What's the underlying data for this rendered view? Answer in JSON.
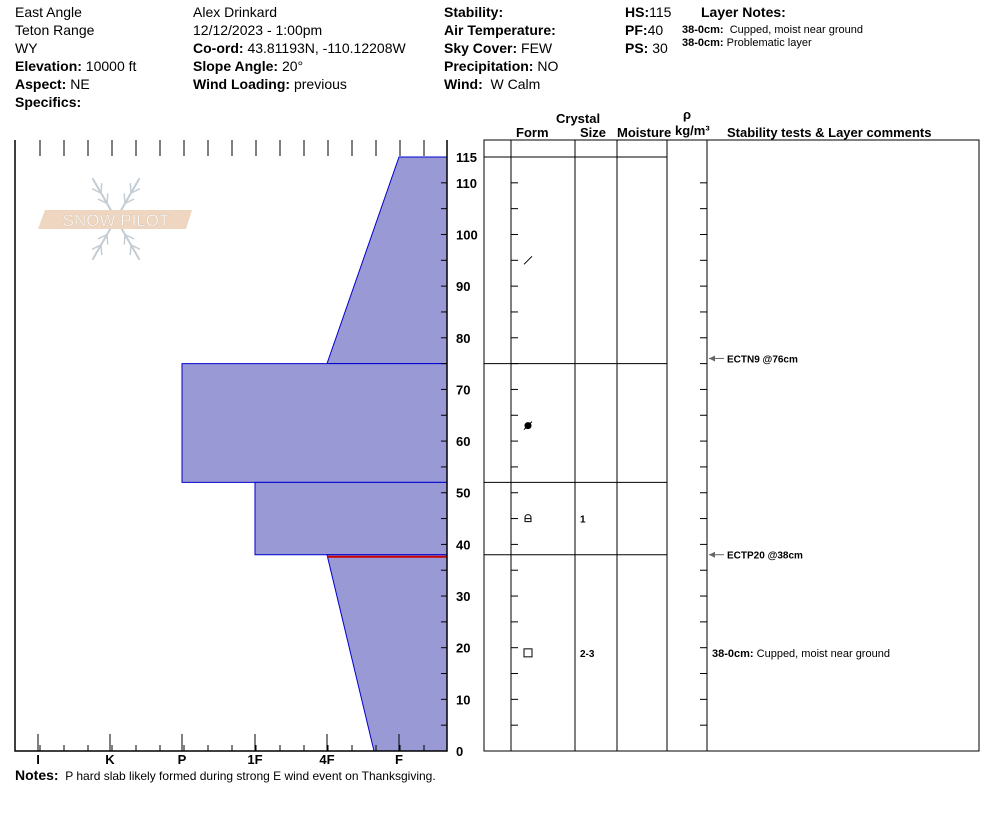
{
  "header": {
    "location": "East Angle",
    "range": "Teton Range",
    "state": "WY",
    "elevation_label": "Elevation:",
    "elevation": "10000 ft",
    "aspect_label": "Aspect:",
    "aspect": "NE",
    "specifics_label": "Specifics:",
    "observer": "Alex Drinkard",
    "datetime": "12/12/2023 - 1:00pm",
    "coord_label": "Co-ord:",
    "coord": "43.81193N, -110.12208W",
    "slope_label": "Slope Angle:",
    "slope": "20°",
    "wind_loading_label": "Wind Loading:",
    "wind_loading": "previous",
    "stability_label": "Stability:",
    "air_temp_label": "Air Temperature:",
    "sky_label": "Sky Cover:",
    "sky": "FEW",
    "precip_label": "Precipitation:",
    "precip": "NO",
    "wind_label": "Wind:",
    "wind": "W Calm",
    "hs_label": "HS:",
    "hs": "115",
    "pf_label": "PF:",
    "pf": "40",
    "ps_label": "PS:",
    "ps": "30",
    "layer_notes_label": "Layer Notes:",
    "layer_notes": [
      {
        "range": "38-0cm:",
        "text": "Cupped, moist near ground"
      },
      {
        "range": "38-0cm:",
        "text": "Problematic layer"
      }
    ]
  },
  "logo_text": "SNOW PILOT",
  "notes_label": "Notes:",
  "notes": "P hard slab likely formed during strong E wind event on Thanksgiving.",
  "table_headers": {
    "crystal": "Crystal",
    "form": "Form",
    "size": "Size",
    "moisture": "Moisture",
    "rho": "ρ",
    "density": "kg/m³",
    "comments": "Stability tests & Layer comments"
  },
  "colors": {
    "fill": "#9999d6",
    "outline": "#0000cc",
    "problem_layer": "#cc0000"
  },
  "chart_data": {
    "type": "area",
    "hardness_ticks": [
      "I",
      "K",
      "P",
      "1F",
      "4F",
      "F"
    ],
    "height_ticks": [
      0,
      10,
      20,
      30,
      40,
      50,
      60,
      70,
      80,
      90,
      100,
      110,
      115
    ],
    "ylim": [
      0,
      115
    ],
    "layers": [
      {
        "top": 115,
        "bottom": 75,
        "hardness_top": "F",
        "hardness_bottom": "4F",
        "form": "decomposing",
        "size": "",
        "grain_height": 95
      },
      {
        "top": 75,
        "bottom": 52,
        "hardness_top": "P",
        "hardness_bottom": "P",
        "form": "rounded-faceted",
        "size": "",
        "grain_height": 63
      },
      {
        "top": 52,
        "bottom": 38,
        "hardness_top": "1F",
        "hardness_bottom": "1F",
        "form": "faceted-rounding",
        "size": "1",
        "grain_height": 45
      },
      {
        "top": 38,
        "bottom": 0,
        "hardness_top": "4F",
        "hardness_bottom": "F-4F",
        "form": "faceted",
        "size": "2-3",
        "grain_height": 19
      }
    ],
    "problem_layer_height": 38,
    "stability_tests": [
      {
        "text": "ECTN9 @76cm",
        "height": 76
      },
      {
        "text": "ECTP20 @38cm",
        "height": 38
      }
    ],
    "layer_comments": [
      {
        "range": "38-0cm:",
        "text": "Cupped, moist near ground",
        "height": 19
      }
    ]
  }
}
